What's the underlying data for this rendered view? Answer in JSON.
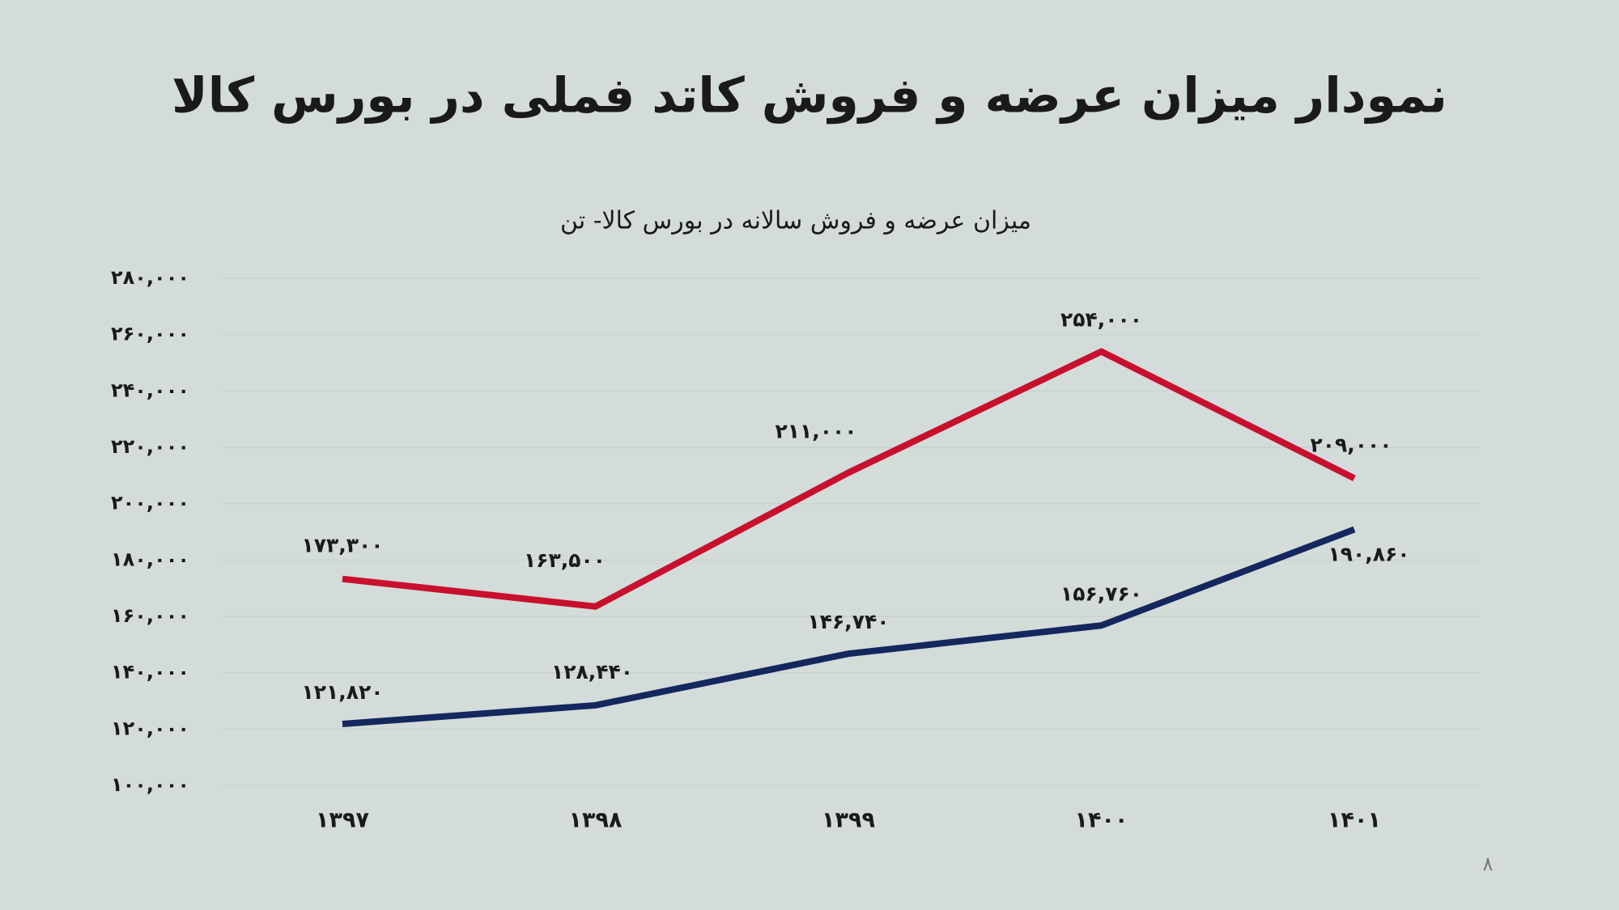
{
  "chart_data": {
    "type": "line",
    "title": "نمودار میزان عرضه و فروش کاتد فملی در بورس کالا",
    "subtitle": "میزان عرضه و فروش سالانه در بورس کالا- تن",
    "categories": [
      "۱۳۹۷",
      "۱۳۹۸",
      "۱۳۹۹",
      "۱۴۰۰",
      "۱۴۰۱"
    ],
    "series": [
      {
        "color": "#c8102e",
        "values": [
          173300,
          163500,
          211000,
          254000,
          209000
        ],
        "value_labels": [
          "۱۷۳,۳۰۰",
          "۱۶۳,۵۰۰",
          "۲۱۱,۰۰۰",
          "۲۵۴,۰۰۰",
          "۲۰۹,۰۰۰"
        ]
      },
      {
        "color": "#14275e",
        "values": [
          121820,
          128440,
          146740,
          156760,
          190860
        ],
        "value_labels": [
          "۱۲۱,۸۲۰",
          "۱۲۸,۴۴۰",
          "۱۴۶,۷۴۰",
          "۱۵۶,۷۶۰",
          "۱۹۰,۸۶۰"
        ]
      }
    ],
    "ylim": [
      100000,
      280000
    ],
    "yticks": [
      {
        "value": 100000,
        "label": "۱۰۰,۰۰۰"
      },
      {
        "value": 120000,
        "label": "۱۲۰,۰۰۰"
      },
      {
        "value": 140000,
        "label": "۱۴۰,۰۰۰"
      },
      {
        "value": 160000,
        "label": "۱۶۰,۰۰۰"
      },
      {
        "value": 180000,
        "label": "۱۸۰,۰۰۰"
      },
      {
        "value": 200000,
        "label": "۲۰۰,۰۰۰"
      },
      {
        "value": 220000,
        "label": "۲۲۰,۰۰۰"
      },
      {
        "value": 240000,
        "label": "۲۴۰,۰۰۰"
      },
      {
        "value": 260000,
        "label": "۲۶۰,۰۰۰"
      },
      {
        "value": 280000,
        "label": "۲۸۰,۰۰۰"
      }
    ],
    "grid": true
  },
  "page_number": "۸"
}
